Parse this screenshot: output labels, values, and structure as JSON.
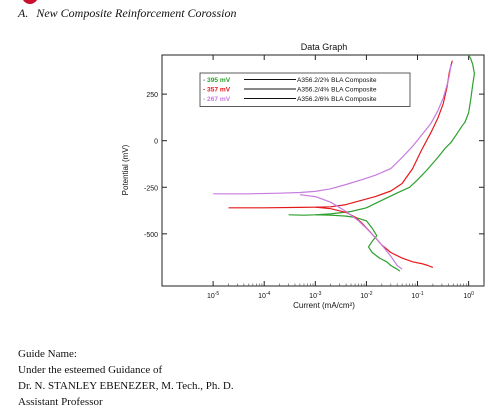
{
  "header": {
    "section_label": "A.",
    "section_title": "New Composite Reinforcement Corossion"
  },
  "chart_data": {
    "type": "line",
    "title": "Data Graph",
    "xlabel": "Current (mA/cm²)",
    "ylabel": "Potential (mV)",
    "x_scale": "log",
    "xlim": [
      1e-06,
      2
    ],
    "ylim": [
      -780,
      460
    ],
    "x_ticks": [
      {
        "value": 1e-05,
        "base": "10",
        "exp": "-5"
      },
      {
        "value": 0.0001,
        "base": "10",
        "exp": "-4"
      },
      {
        "value": 0.001,
        "base": "10",
        "exp": "-3"
      },
      {
        "value": 0.01,
        "base": "10",
        "exp": "-2"
      },
      {
        "value": 0.1,
        "base": "10",
        "exp": "-1"
      },
      {
        "value": 1,
        "base": "10",
        "exp": "0"
      }
    ],
    "y_ticks": [
      250,
      0,
      -250,
      -500
    ],
    "y_tick_labels": [
      "250",
      "0",
      "-250",
      "-500"
    ],
    "grid": false,
    "legend_position": "top-right",
    "series": [
      {
        "name": "A356.2/2% BLA Composite",
        "legend_value": "- 395 mV",
        "color": "#2ca02c",
        "points": [
          [
            0.0003,
            -398
          ],
          [
            0.0006,
            -400
          ],
          [
            0.001,
            -398
          ],
          [
            0.002,
            -393
          ],
          [
            0.005,
            -380
          ],
          [
            0.01,
            -360
          ],
          [
            0.02,
            -320
          ],
          [
            0.04,
            -280
          ],
          [
            0.07,
            -250
          ],
          [
            0.1,
            -210
          ],
          [
            0.15,
            -160
          ],
          [
            0.25,
            -90
          ],
          [
            0.35,
            -40
          ],
          [
            0.45,
            -10
          ],
          [
            0.6,
            40
          ],
          [
            0.75,
            80
          ],
          [
            0.85,
            100
          ],
          [
            1,
            150
          ],
          [
            1.1,
            220
          ],
          [
            1.2,
            300
          ],
          [
            1.3,
            360
          ],
          [
            1.2,
            410
          ],
          [
            1.1,
            440
          ],
          [
            1,
            460
          ],
          [
            0.001,
            -398
          ],
          [
            0.002,
            -400
          ],
          [
            0.004,
            -405
          ],
          [
            0.006,
            -412
          ],
          [
            0.008,
            -422
          ],
          [
            0.01,
            -430
          ],
          [
            0.013,
            -470
          ],
          [
            0.016,
            -510
          ],
          [
            0.013,
            -540
          ],
          [
            0.011,
            -570
          ],
          [
            0.013,
            -600
          ],
          [
            0.018,
            -630
          ],
          [
            0.025,
            -650
          ],
          [
            0.03,
            -670
          ],
          [
            0.04,
            -690
          ],
          [
            0.045,
            -700
          ]
        ]
      },
      {
        "name": "A356.2/4% BLA Composite",
        "legend_value": "- 357 mV",
        "color": "#e31a1c",
        "points": [
          [
            2e-05,
            -360
          ],
          [
            0.0001,
            -360
          ],
          [
            0.0005,
            -358
          ],
          [
            0.001,
            -357
          ],
          [
            0.002,
            -355
          ],
          [
            0.004,
            -343
          ],
          [
            0.008,
            -320
          ],
          [
            0.015,
            -300
          ],
          [
            0.03,
            -270
          ],
          [
            0.05,
            -230
          ],
          [
            0.08,
            -150
          ],
          [
            0.12,
            -50
          ],
          [
            0.18,
            40
          ],
          [
            0.25,
            120
          ],
          [
            0.32,
            200
          ],
          [
            0.38,
            290
          ],
          [
            0.42,
            370
          ],
          [
            0.48,
            430
          ],
          [
            0.001,
            -357
          ],
          [
            0.002,
            -365
          ],
          [
            0.004,
            -385
          ],
          [
            0.006,
            -410
          ],
          [
            0.008,
            -440
          ],
          [
            0.011,
            -480
          ],
          [
            0.015,
            -520
          ],
          [
            0.02,
            -560
          ],
          [
            0.03,
            -600
          ],
          [
            0.05,
            -630
          ],
          [
            0.08,
            -650
          ],
          [
            0.12,
            -660
          ],
          [
            0.16,
            -670
          ],
          [
            0.2,
            -680
          ]
        ]
      },
      {
        "name": "A356.2/6% BLA Composite",
        "legend_value": "- 267 mV",
        "color": "#c77bdf",
        "points": [
          [
            1e-05,
            -285
          ],
          [
            5e-05,
            -285
          ],
          [
            0.0002,
            -282
          ],
          [
            0.0005,
            -278
          ],
          [
            0.001,
            -272
          ],
          [
            0.002,
            -258
          ],
          [
            0.004,
            -235
          ],
          [
            0.008,
            -210
          ],
          [
            0.015,
            -185
          ],
          [
            0.03,
            -150
          ],
          [
            0.05,
            -90
          ],
          [
            0.08,
            -30
          ],
          [
            0.12,
            30
          ],
          [
            0.18,
            90
          ],
          [
            0.25,
            160
          ],
          [
            0.32,
            230
          ],
          [
            0.38,
            300
          ],
          [
            0.42,
            350
          ],
          [
            0.45,
            410
          ],
          [
            0.0005,
            -290
          ],
          [
            0.001,
            -300
          ],
          [
            0.002,
            -330
          ],
          [
            0.004,
            -380
          ],
          [
            0.007,
            -430
          ],
          [
            0.01,
            -470
          ],
          [
            0.015,
            -520
          ],
          [
            0.02,
            -560
          ],
          [
            0.03,
            -620
          ],
          [
            0.04,
            -670
          ],
          [
            0.05,
            -690
          ]
        ]
      }
    ]
  },
  "footer": {
    "line1": "Guide Name:",
    "line2": "Under the esteemed Guidance of",
    "line3": "Dr. N. STANLEY EBENEZER, M. Tech., Ph. D.",
    "line4": "Assistant Professor"
  }
}
